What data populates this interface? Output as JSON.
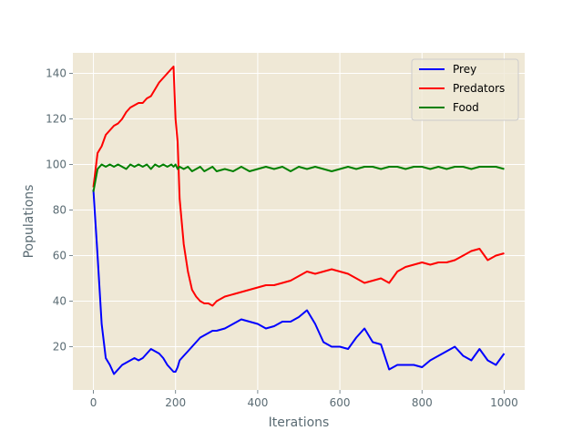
{
  "chart_data": {
    "type": "line",
    "title": "",
    "xlabel": "Iterations",
    "ylabel": "Populations",
    "xlim": [
      -50,
      1050
    ],
    "ylim": [
      1,
      149
    ],
    "x_ticks": [
      0,
      200,
      400,
      600,
      800,
      1000
    ],
    "y_ticks": [
      20,
      40,
      60,
      80,
      100,
      120,
      140
    ],
    "grid": true,
    "legend_position": "top-right",
    "background_color": "#efe8d6",
    "x": [
      0,
      10,
      20,
      30,
      40,
      50,
      60,
      70,
      80,
      90,
      100,
      110,
      120,
      130,
      140,
      150,
      160,
      170,
      180,
      190,
      195,
      200,
      205,
      210,
      220,
      230,
      240,
      250,
      260,
      270,
      280,
      290,
      300,
      320,
      340,
      360,
      380,
      400,
      420,
      440,
      460,
      480,
      500,
      520,
      540,
      560,
      580,
      600,
      620,
      640,
      660,
      680,
      700,
      720,
      740,
      760,
      780,
      800,
      820,
      840,
      860,
      880,
      900,
      920,
      940,
      960,
      980,
      1000
    ],
    "series": [
      {
        "name": "Prey",
        "color": "#0000ff",
        "values": [
          89,
          60,
          30,
          15,
          12,
          8,
          10,
          12,
          13,
          14,
          15,
          14,
          15,
          17,
          19,
          18,
          17,
          15,
          12,
          10,
          9,
          9,
          11,
          14,
          16,
          18,
          20,
          22,
          24,
          25,
          26,
          27,
          27,
          28,
          30,
          32,
          31,
          30,
          28,
          29,
          31,
          31,
          33,
          36,
          30,
          22,
          20,
          20,
          19,
          24,
          28,
          22,
          21,
          10,
          12,
          12,
          12,
          11,
          14,
          16,
          18,
          20,
          16,
          14,
          19,
          14,
          12,
          17
        ]
      },
      {
        "name": "Predators",
        "color": "#ff0000",
        "values": [
          90,
          105,
          108,
          113,
          115,
          117,
          118,
          120,
          123,
          125,
          126,
          127,
          127,
          129,
          130,
          133,
          136,
          138,
          140,
          142,
          143,
          120,
          110,
          85,
          65,
          53,
          45,
          42,
          40,
          39,
          39,
          38,
          40,
          42,
          43,
          44,
          45,
          46,
          47,
          47,
          48,
          49,
          51,
          53,
          52,
          53,
          54,
          53,
          52,
          50,
          48,
          49,
          50,
          48,
          53,
          55,
          56,
          57,
          56,
          57,
          57,
          58,
          60,
          62,
          63,
          58,
          60,
          61
        ]
      },
      {
        "name": "Food",
        "color": "#008000",
        "values": [
          88,
          98,
          100,
          99,
          100,
          99,
          100,
          99,
          98,
          100,
          99,
          100,
          99,
          100,
          98,
          100,
          99,
          100,
          99,
          100,
          99,
          100,
          98,
          99,
          98,
          99,
          97,
          98,
          99,
          97,
          98,
          99,
          97,
          98,
          97,
          99,
          97,
          98,
          99,
          98,
          99,
          97,
          99,
          98,
          99,
          98,
          97,
          98,
          99,
          98,
          99,
          99,
          98,
          99,
          99,
          98,
          99,
          99,
          98,
          99,
          98,
          99,
          99,
          98,
          99,
          99,
          99,
          98
        ]
      }
    ]
  }
}
